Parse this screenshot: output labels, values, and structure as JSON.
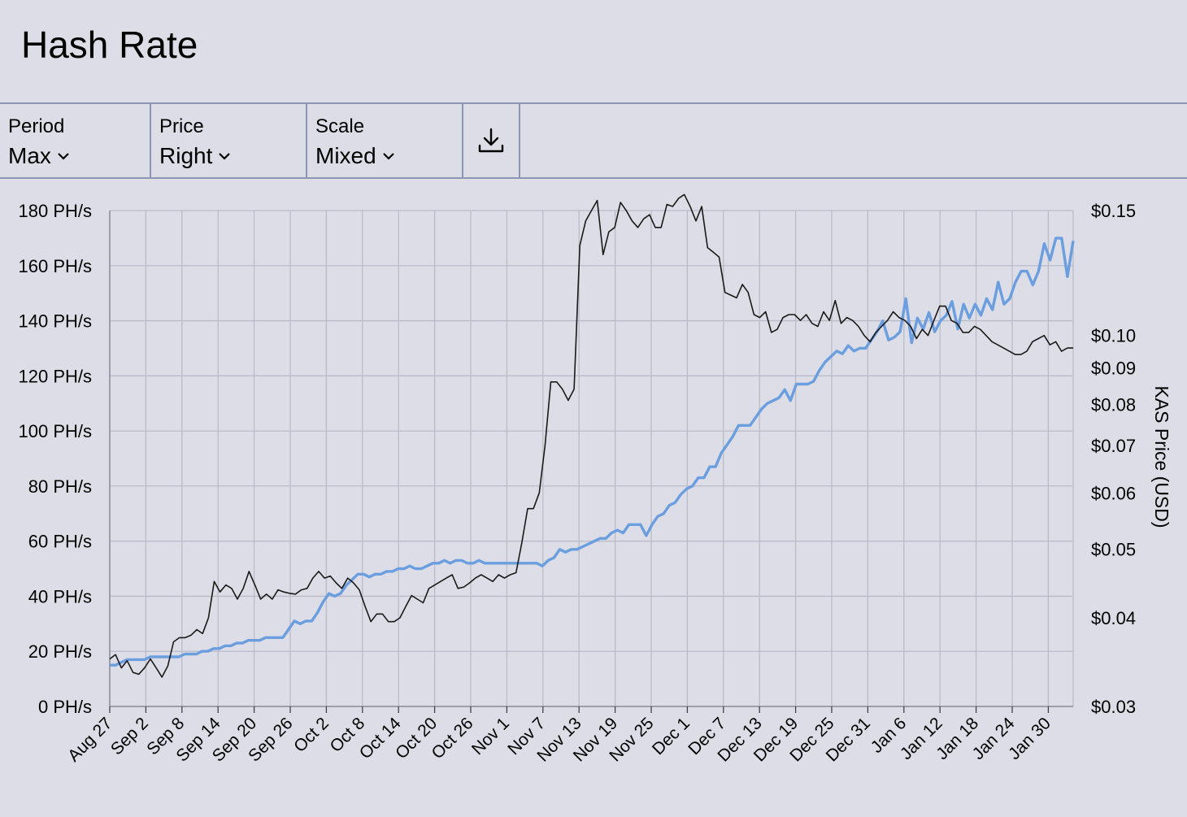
{
  "page": {
    "title": "Hash Rate"
  },
  "toolbar": {
    "period": {
      "label": "Period",
      "value": "Max"
    },
    "price": {
      "label": "Price",
      "value": "Right"
    },
    "scale": {
      "label": "Scale",
      "value": "Mixed"
    },
    "download_icon": "download-icon"
  },
  "chart_data": {
    "type": "line",
    "grid": true,
    "x_ticks": [
      "Aug 27",
      "Sep 2",
      "Sep 8",
      "Sep 14",
      "Sep 20",
      "Sep 26",
      "Oct 2",
      "Oct 8",
      "Oct 14",
      "Oct 20",
      "Oct 26",
      "Nov 1",
      "Nov 7",
      "Nov 13",
      "Nov 19",
      "Nov 25",
      "Dec 1",
      "Dec 7",
      "Dec 13",
      "Dec 19",
      "Dec 25",
      "Dec 31",
      "Jan 6",
      "Jan 12",
      "Jan 18",
      "Jan 24",
      "Jan 30"
    ],
    "y_left": {
      "ticks": [
        "0 PH/s",
        "20 PH/s",
        "40 PH/s",
        "60 PH/s",
        "80 PH/s",
        "100 PH/s",
        "120 PH/s",
        "140 PH/s",
        "160 PH/s",
        "180 PH/s"
      ],
      "range": [
        0,
        180
      ],
      "unit": "PH/s"
    },
    "y_right": {
      "label": "KAS Price (USD)",
      "scale": "log",
      "range": [
        0.03,
        0.15
      ],
      "ticks": [
        "$0.15",
        "$0.10",
        "$0.09",
        "$0.08",
        "$0.07",
        "$0.06",
        "$0.05",
        "$0.04",
        "$0.03"
      ]
    },
    "series": [
      {
        "name": "",
        "axis": "left",
        "color": "#6b9edf",
        "x_range": [
          0,
          161
        ],
        "values": [
          15,
          15,
          16,
          17,
          17,
          17,
          17,
          18,
          18,
          18,
          18,
          18,
          18,
          19,
          19,
          19,
          20,
          20,
          21,
          21,
          22,
          22,
          23,
          23,
          24,
          24,
          24,
          25,
          25,
          25,
          25,
          28,
          31,
          30,
          31,
          31,
          34,
          38,
          41,
          40,
          41,
          44,
          46,
          48,
          48,
          47,
          48,
          48,
          49,
          49,
          50,
          50,
          51,
          50,
          50,
          51,
          52,
          52,
          53,
          52,
          53,
          53,
          52,
          52,
          53,
          52,
          52,
          52,
          52,
          52,
          52,
          52,
          52,
          52,
          52,
          51,
          53,
          54,
          57,
          56,
          57,
          57,
          58,
          59,
          60,
          61,
          61,
          63,
          64,
          63,
          66,
          66,
          66,
          62,
          66,
          69,
          70,
          73,
          74,
          77,
          79,
          80,
          83,
          83,
          87,
          87,
          92,
          95,
          98,
          102,
          102,
          102,
          105,
          108,
          110,
          111,
          112,
          115,
          111,
          117,
          117,
          117,
          118,
          122,
          125,
          127,
          129,
          128,
          131,
          129,
          130,
          130,
          133,
          136,
          140,
          133,
          134,
          136,
          148,
          132,
          141,
          137,
          143,
          136,
          140,
          142,
          147,
          137,
          146,
          141,
          146,
          142,
          148,
          144,
          154,
          146,
          148,
          154,
          158,
          158,
          153,
          158,
          168,
          162,
          170,
          170,
          156,
          169
        ]
      },
      {
        "name": "",
        "axis": "right",
        "color": "#1a1a1a",
        "x_range": [
          0,
          161
        ],
        "values": [
          0.035,
          0.0355,
          0.034,
          0.0348,
          0.0335,
          0.0333,
          0.034,
          0.035,
          0.034,
          0.033,
          0.0342,
          0.037,
          0.0375,
          0.0375,
          0.0378,
          0.0385,
          0.038,
          0.04,
          0.045,
          0.0435,
          0.0445,
          0.044,
          0.0425,
          0.044,
          0.0465,
          0.0445,
          0.0425,
          0.0432,
          0.0425,
          0.0438,
          0.0435,
          0.0433,
          0.0432,
          0.0438,
          0.044,
          0.0455,
          0.0465,
          0.0455,
          0.0458,
          0.0448,
          0.044,
          0.0455,
          0.0448,
          0.0438,
          0.0415,
          0.0395,
          0.0405,
          0.0405,
          0.0395,
          0.0395,
          0.04,
          0.0415,
          0.043,
          0.0425,
          0.042,
          0.044,
          0.0445,
          0.045,
          0.0455,
          0.046,
          0.044,
          0.0442,
          0.0448,
          0.0455,
          0.046,
          0.0455,
          0.045,
          0.046,
          0.0455,
          0.046,
          0.0463,
          0.051,
          0.057,
          0.057,
          0.06,
          0.07,
          0.086,
          0.086,
          0.084,
          0.081,
          0.084,
          0.134,
          0.145,
          0.15,
          0.155,
          0.13,
          0.14,
          0.142,
          0.154,
          0.15,
          0.145,
          0.142,
          0.146,
          0.148,
          0.142,
          0.142,
          0.153,
          0.152,
          0.156,
          0.158,
          0.152,
          0.145,
          0.152,
          0.133,
          0.131,
          0.129,
          0.115,
          0.114,
          0.113,
          0.118,
          0.115,
          0.107,
          0.106,
          0.108,
          0.101,
          0.102,
          0.106,
          0.107,
          0.107,
          0.105,
          0.107,
          0.104,
          0.103,
          0.108,
          0.105,
          0.112,
          0.104,
          0.106,
          0.105,
          0.103,
          0.1,
          0.098,
          0.101,
          0.103,
          0.105,
          0.108,
          0.106,
          0.105,
          0.103,
          0.099,
          0.102,
          0.1,
          0.105,
          0.11,
          0.11,
          0.105,
          0.104,
          0.101,
          0.101,
          0.103,
          0.102,
          0.1,
          0.098,
          0.097,
          0.096,
          0.095,
          0.094,
          0.094,
          0.095,
          0.098,
          0.099,
          0.1,
          0.097,
          0.098,
          0.095,
          0.096,
          0.096
        ]
      }
    ]
  }
}
